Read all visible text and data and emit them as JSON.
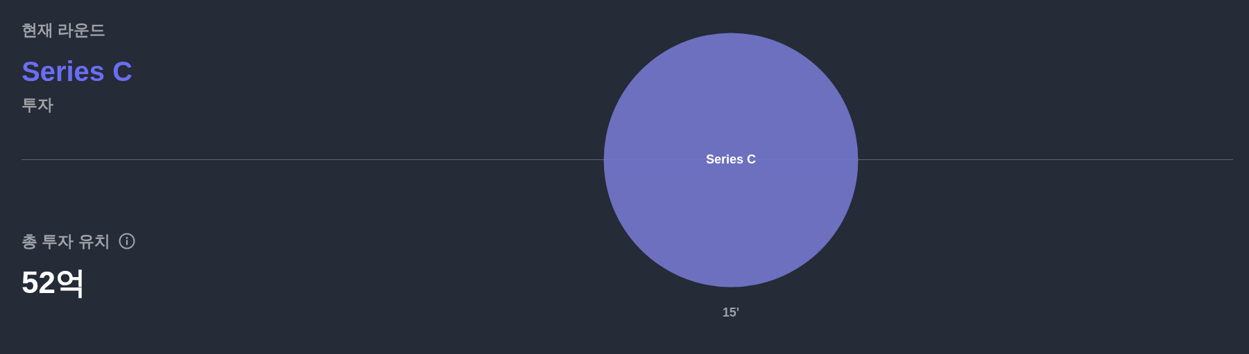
{
  "chart_data": [
    {
      "type": "other",
      "annotations": [
        "현재 라운드",
        "Series C",
        "투자",
        "총 투자 유치",
        "52억"
      ]
    },
    {
      "type": "pie",
      "categories": [
        "Series C"
      ],
      "values": [
        100
      ],
      "colors": [
        "#6d6fbf"
      ],
      "annotations": [
        "15'"
      ]
    }
  ]
}
